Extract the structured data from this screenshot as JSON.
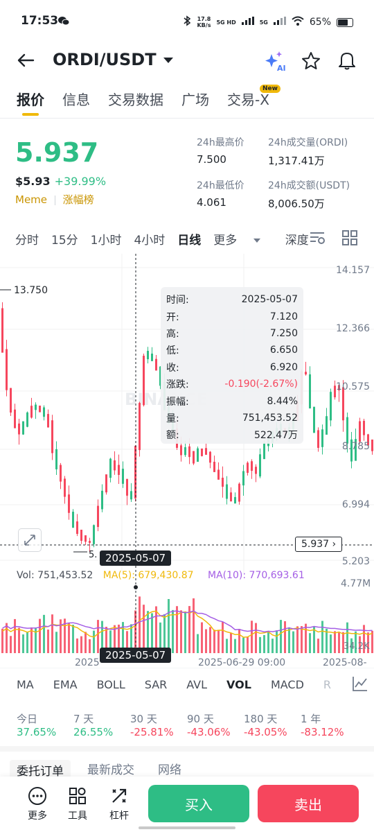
{
  "status": {
    "time": "17:53",
    "net_speed": "17.8",
    "net_unit": "KB/s",
    "sig1": "5G HD",
    "sig2": "5G",
    "battery": "65%"
  },
  "header": {
    "pair": "ORDI/USDT",
    "ai_label": "AI"
  },
  "tabs": [
    {
      "label": "报价"
    },
    {
      "label": "信息"
    },
    {
      "label": "交易数据"
    },
    {
      "label": "广场"
    },
    {
      "label": "交易-X"
    }
  ],
  "new_badge": "New",
  "price": {
    "last": "5.937",
    "usd": "$5.93",
    "change": "+39.99%",
    "tag1": "Meme",
    "tag2": "涨幅榜"
  },
  "stats": {
    "high_label": "24h最高价",
    "high": "7.500",
    "vol_label": "24h成交量(ORDI)",
    "vol": "1,317.41万",
    "low_label": "24h最低价",
    "low": "4.061",
    "amt_label": "24h成交额(USDT)",
    "amt": "8,006.50万"
  },
  "intervals": [
    "分时",
    "15分",
    "1小时",
    "4小时",
    "日线",
    "更多",
    "深度"
  ],
  "chart": {
    "y_ticks": [
      "14.157",
      "12.366",
      "10.575",
      "8.785",
      "6.994",
      "5.203"
    ],
    "max_label": "13.750",
    "min_label": "5.",
    "current_price": "5.937",
    "crosshair_date": "2025-05-07",
    "x_labels": [
      "2025",
      "2025-06-29 09:00",
      "2025-08-"
    ],
    "vol_tick_top": "4.77M",
    "vol_tick_bottom": "34.2K",
    "watermark": "BINANCE",
    "colors": {
      "up": "#2ebd85",
      "down": "#f6465d",
      "ma5": "#f0b90b",
      "ma10": "#a45ee5"
    }
  },
  "tooltip": {
    "time_label": "时间:",
    "time": "2025-05-07",
    "open_label": "开:",
    "open": "7.120",
    "high_label": "高:",
    "high": "7.250",
    "low_label": "低:",
    "low": "6.650",
    "close_label": "收:",
    "close": "6.920",
    "chg_label": "涨跌:",
    "chg": "-0.190(-2.67%)",
    "amp_label": "振幅:",
    "amp": "8.44%",
    "vol_label": "量:",
    "vol": "751,453.52",
    "amt_label": "额:",
    "amt": "522.47万"
  },
  "volume_line": {
    "vol": "Vol: 751,453.52",
    "ma5": "MA(5): 679,430.87",
    "ma10": "MA(10): 770,693.61"
  },
  "indicators": [
    "MA",
    "EMA",
    "BOLL",
    "SAR",
    "AVL",
    "VOL",
    "MACD",
    "R"
  ],
  "performance": [
    {
      "label": "今日",
      "value": "37.65%",
      "dir": "up"
    },
    {
      "label": "7 天",
      "value": "26.55%",
      "dir": "up"
    },
    {
      "label": "30 天",
      "value": "-25.81%",
      "dir": "down"
    },
    {
      "label": "90 天",
      "value": "-43.06%",
      "dir": "down"
    },
    {
      "label": "180 天",
      "value": "-43.05%",
      "dir": "down"
    },
    {
      "label": "1 年",
      "value": "-83.12%",
      "dir": "down"
    }
  ],
  "lower_tabs": [
    "委托订单",
    "最新成交",
    "网络"
  ],
  "bottom": {
    "more": "更多",
    "tools": "工具",
    "leverage": "杠杆",
    "buy": "买入",
    "sell": "卖出"
  }
}
